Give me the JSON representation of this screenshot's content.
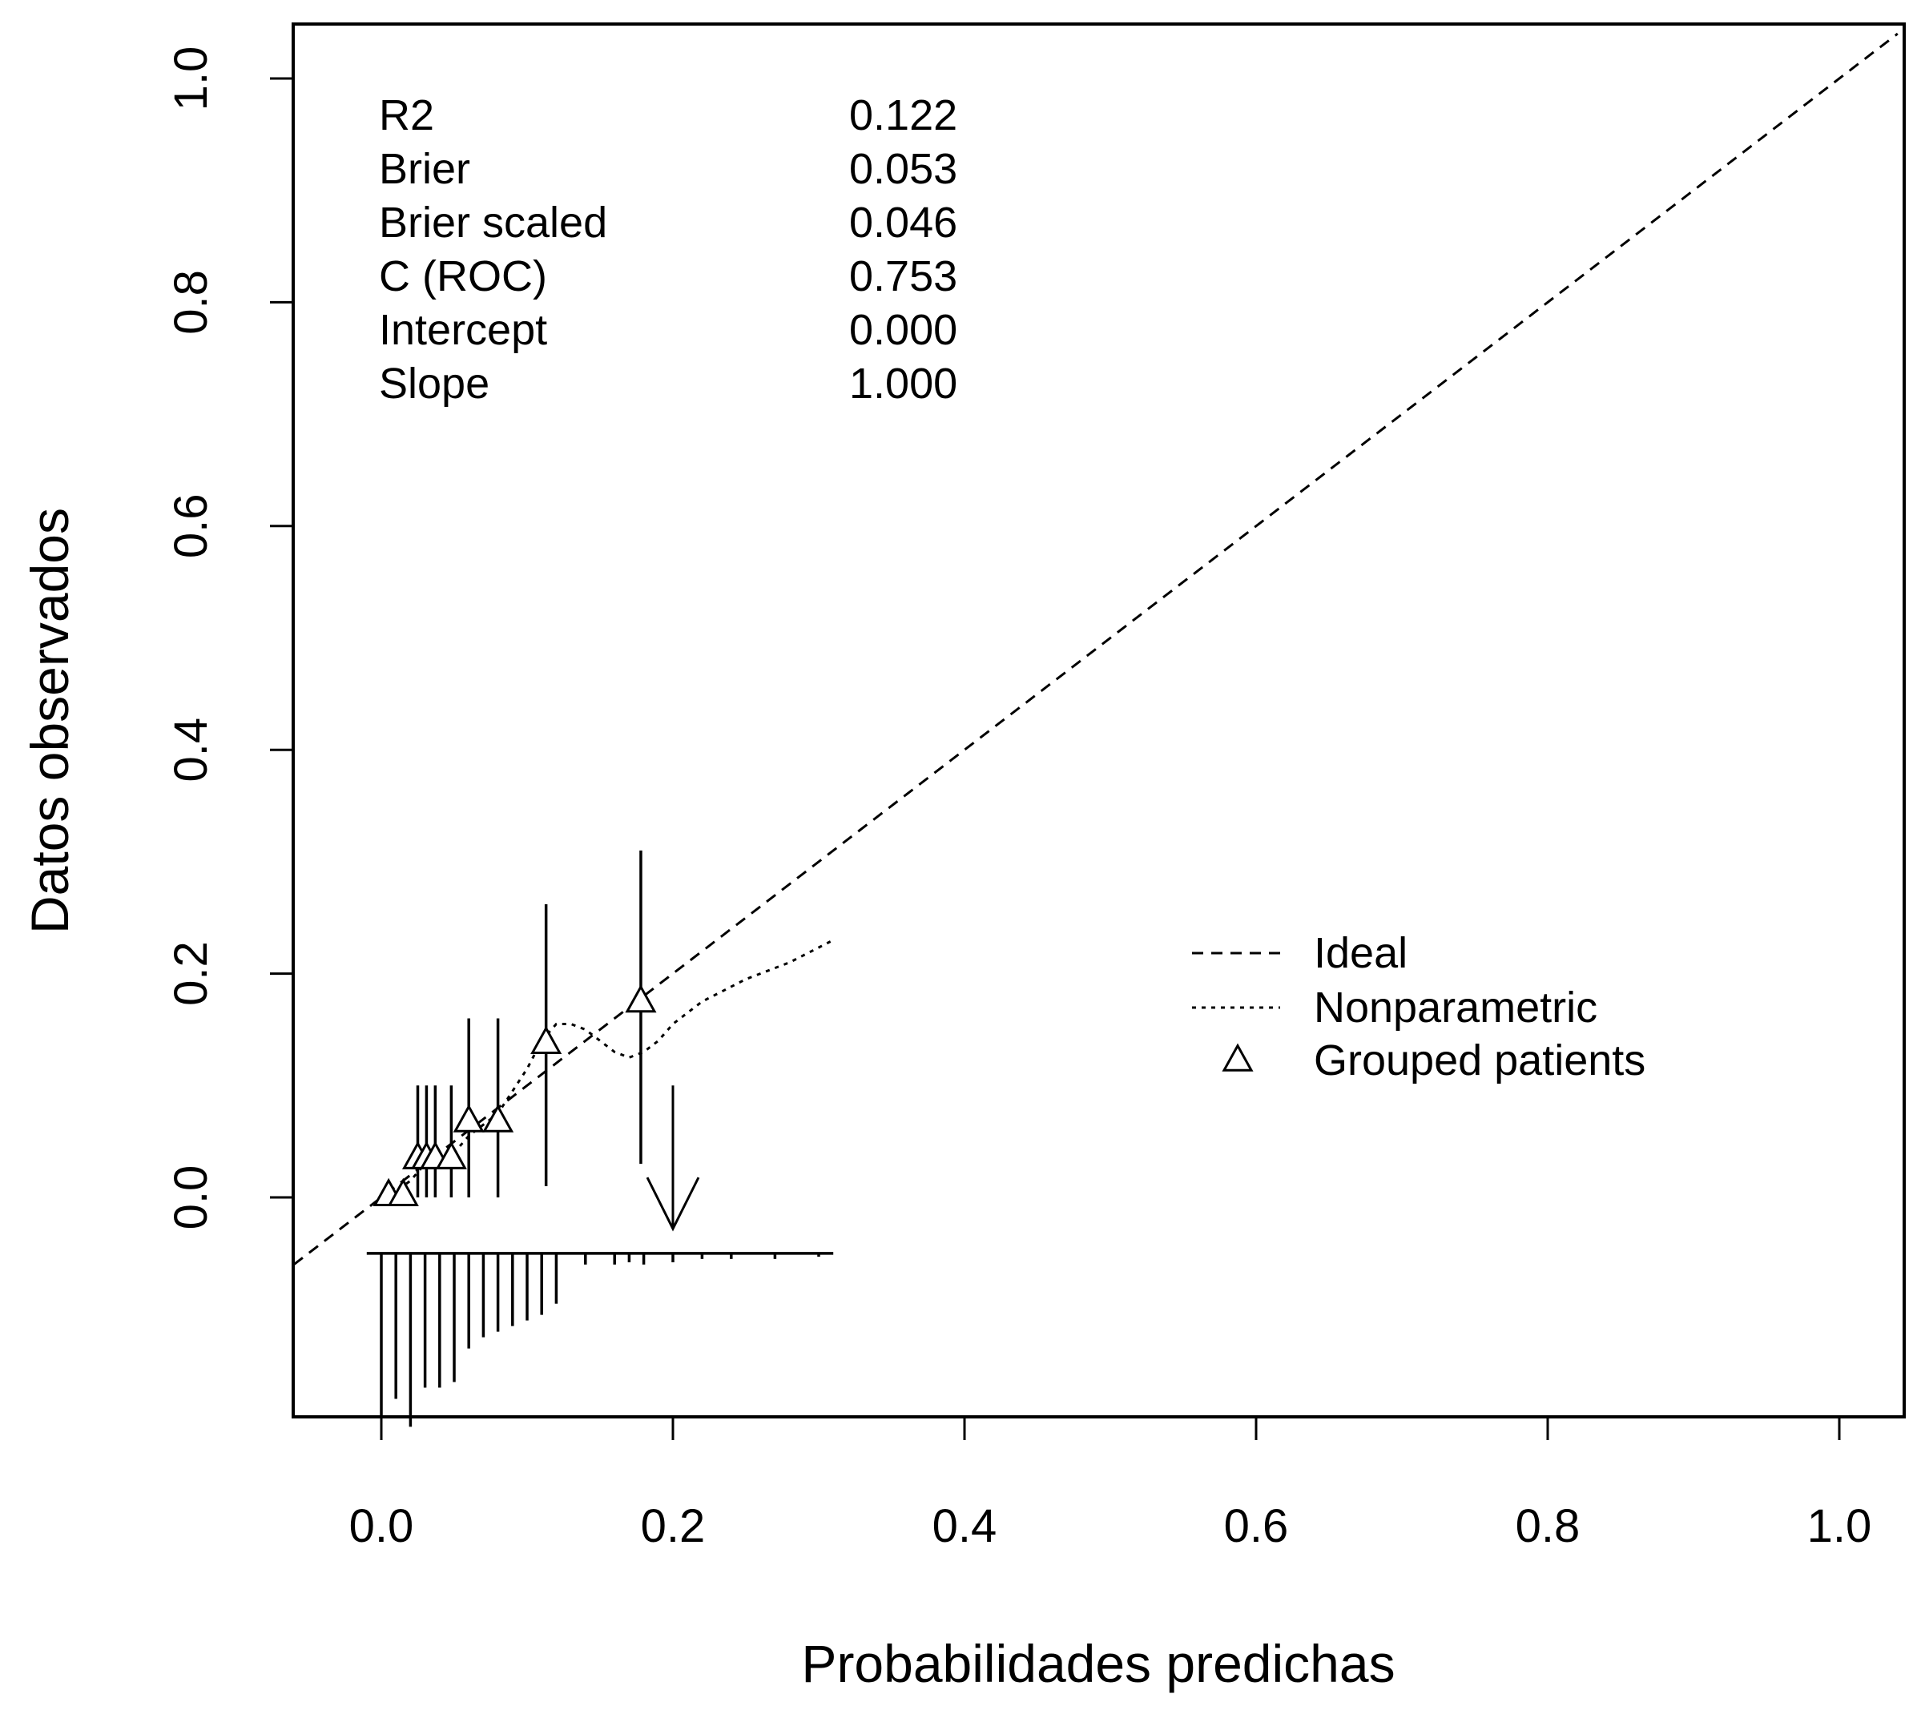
{
  "chart_data": {
    "type": "line",
    "title": "",
    "xlabel": "Probabilidades predichas",
    "ylabel": "Datos observados",
    "xlim": [
      -0.06,
      1.04
    ],
    "ylim": [
      -0.2,
      1.05
    ],
    "xticks": [
      {
        "value": 0.0,
        "label": "0.0"
      },
      {
        "value": 0.2,
        "label": "0.2"
      },
      {
        "value": 0.4,
        "label": "0.4"
      },
      {
        "value": 0.6,
        "label": "0.6"
      },
      {
        "value": 0.8,
        "label": "0.8"
      },
      {
        "value": 1.0,
        "label": "1.0"
      }
    ],
    "yticks": [
      {
        "value": 0.0,
        "label": "0.0"
      },
      {
        "value": 0.2,
        "label": "0.2"
      },
      {
        "value": 0.4,
        "label": "0.4"
      },
      {
        "value": 0.6,
        "label": "0.6"
      },
      {
        "value": 0.8,
        "label": "0.8"
      },
      {
        "value": 1.0,
        "label": "1.0"
      }
    ],
    "grid": false,
    "legend_position": "right",
    "stats": [
      {
        "label": "R2",
        "value": "0.122"
      },
      {
        "label": "Brier",
        "value": "0.053"
      },
      {
        "label": "Brier scaled",
        "value": "0.046"
      },
      {
        "label": "C (ROC)",
        "value": "0.753"
      },
      {
        "label": "Intercept",
        "value": "0.000"
      },
      {
        "label": "Slope",
        "value": "1.000"
      }
    ],
    "series": [
      {
        "name": "Ideal",
        "style": "dashed",
        "x": [
          -0.06,
          1.04
        ],
        "y": [
          -0.06,
          1.04
        ]
      },
      {
        "name": "Nonparametric",
        "style": "dotted",
        "x": [
          0.0,
          0.01,
          0.02,
          0.03,
          0.04,
          0.05,
          0.06,
          0.07,
          0.08,
          0.09,
          0.1,
          0.11,
          0.12,
          0.13,
          0.14,
          0.15,
          0.16,
          0.17,
          0.18,
          0.19,
          0.2,
          0.22,
          0.25,
          0.28,
          0.31
        ],
        "y": [
          0.0,
          0.005,
          0.015,
          0.03,
          0.035,
          0.04,
          0.055,
          0.065,
          0.075,
          0.095,
          0.115,
          0.14,
          0.155,
          0.155,
          0.15,
          0.14,
          0.13,
          0.125,
          0.13,
          0.14,
          0.155,
          0.175,
          0.195,
          0.21,
          0.23
        ]
      },
      {
        "name": "Grouped patients",
        "style": "triangle",
        "points": [
          {
            "x": 0.005,
            "y": 0.002,
            "lower": 0.0,
            "upper": 0.0
          },
          {
            "x": 0.015,
            "y": 0.002,
            "lower": 0.0,
            "upper": 0.0
          },
          {
            "x": 0.025,
            "y": 0.035,
            "lower": 0.0,
            "upper": 0.1
          },
          {
            "x": 0.031,
            "y": 0.035,
            "lower": 0.0,
            "upper": 0.1
          },
          {
            "x": 0.037,
            "y": 0.035,
            "lower": 0.0,
            "upper": 0.1
          },
          {
            "x": 0.048,
            "y": 0.035,
            "lower": 0.0,
            "upper": 0.1
          },
          {
            "x": 0.06,
            "y": 0.068,
            "lower": 0.0,
            "upper": 0.16
          },
          {
            "x": 0.08,
            "y": 0.068,
            "lower": 0.0,
            "upper": 0.16
          },
          {
            "x": 0.113,
            "y": 0.138,
            "lower": 0.01,
            "upper": 0.262
          },
          {
            "x": 0.178,
            "y": 0.175,
            "lower": 0.03,
            "upper": 0.31
          }
        ]
      }
    ],
    "arrow": {
      "x": 0.2,
      "y_top": 0.1,
      "y_tip": -0.028
    },
    "spike_histogram": {
      "baseline_y": -0.05,
      "x": [
        0.0,
        0.01,
        0.02,
        0.03,
        0.04,
        0.05,
        0.06,
        0.07,
        0.08,
        0.09,
        0.1,
        0.11,
        0.12,
        0.14,
        0.16,
        0.17,
        0.18,
        0.2,
        0.22,
        0.24,
        0.27,
        0.3
      ],
      "y": [
        -0.195,
        -0.18,
        -0.205,
        -0.17,
        -0.17,
        -0.165,
        -0.135,
        -0.125,
        -0.12,
        -0.115,
        -0.11,
        -0.105,
        -0.095,
        -0.06,
        -0.06,
        -0.058,
        -0.06,
        -0.058,
        -0.055,
        -0.055,
        -0.055,
        -0.053
      ]
    }
  }
}
